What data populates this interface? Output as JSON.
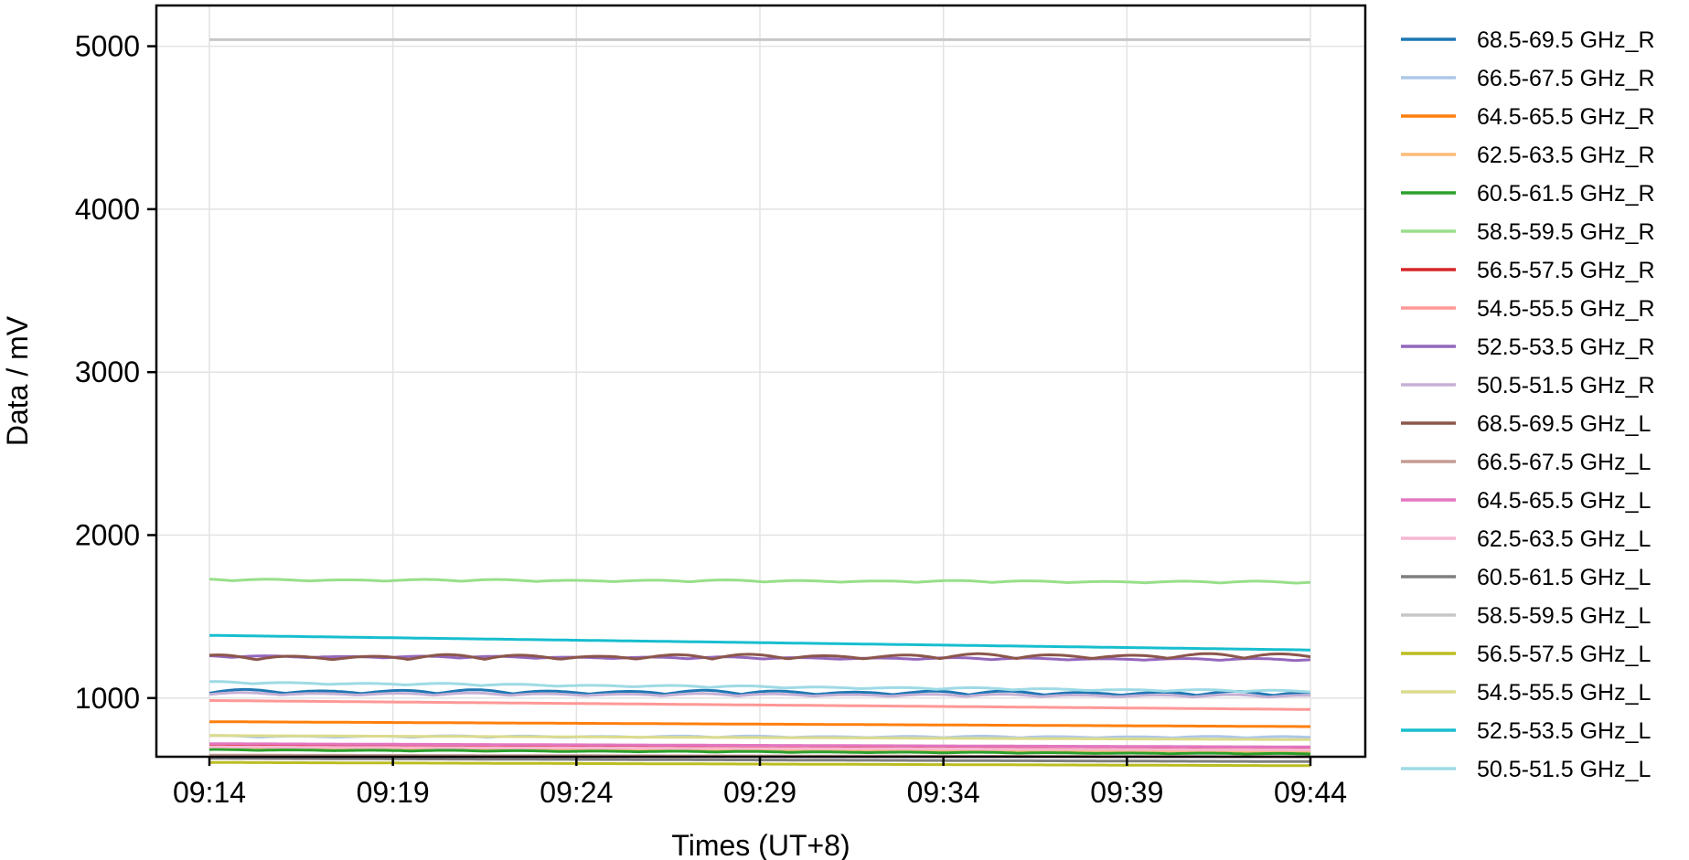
{
  "chart_data": {
    "type": "line",
    "title": "",
    "xlabel": "Times (UT+8)",
    "ylabel": "Data / mV",
    "x_ticks": [
      "09:14",
      "09:19",
      "09:24",
      "09:29",
      "09:34",
      "09:39",
      "09:44"
    ],
    "x_range_minutes": [
      0,
      30
    ],
    "y_ticks": [
      1000,
      2000,
      3000,
      4000,
      5000
    ],
    "ylim": [
      640,
      5250
    ],
    "grid": true,
    "legend_position": "outside-right",
    "series": [
      {
        "name": "68.5-69.5 GHz_R",
        "color": "#1f77b4",
        "base": [
          1030,
          1015
        ],
        "ripple": 25
      },
      {
        "name": "66.5-67.5 GHz_R",
        "color": "#aec7e8",
        "base": [
          760,
          755
        ],
        "ripple": 10
      },
      {
        "name": "64.5-65.5 GHz_R",
        "color": "#ff7f0e",
        "base": [
          855,
          825
        ],
        "ripple": 0
      },
      {
        "name": "62.5-63.5 GHz_R",
        "color": "#ffbb78",
        "base": [
          690,
          672
        ],
        "ripple": 0
      },
      {
        "name": "60.5-61.5 GHz_R",
        "color": "#2ca02c",
        "base": [
          680,
          655
        ],
        "ripple": 5
      },
      {
        "name": "58.5-59.5 GHz_R",
        "color": "#98df8a",
        "base": [
          1720,
          1705
        ],
        "ripple": 12
      },
      {
        "name": "56.5-57.5 GHz_R",
        "color": "#d62728",
        "base": [
          705,
          690
        ],
        "ripple": 0
      },
      {
        "name": "54.5-55.5 GHz_R",
        "color": "#ff9896",
        "base": [
          985,
          930
        ],
        "ripple": 0
      },
      {
        "name": "52.5-53.5 GHz_R",
        "color": "#9467bd",
        "base": [
          1250,
          1230
        ],
        "ripple": 12
      },
      {
        "name": "50.5-51.5 GHz_R",
        "color": "#c5b0d5",
        "base": [
          1020,
          1005
        ],
        "ripple": 15
      },
      {
        "name": "68.5-69.5 GHz_L",
        "color": "#8c564b",
        "base": [
          1235,
          1245
        ],
        "ripple": 30
      },
      {
        "name": "66.5-67.5 GHz_L",
        "color": "#c49c94",
        "base": [
          650,
          640
        ],
        "ripple": 0
      },
      {
        "name": "64.5-65.5 GHz_L",
        "color": "#e377c2",
        "base": [
          720,
          700
        ],
        "ripple": 0
      },
      {
        "name": "62.5-63.5 GHz_L",
        "color": "#f7b6d2",
        "base": [
          700,
          682
        ],
        "ripple": 0
      },
      {
        "name": "60.5-61.5 GHz_L",
        "color": "#7f7f7f",
        "base": [
          630,
          610
        ],
        "ripple": 0
      },
      {
        "name": "58.5-59.5 GHz_L",
        "color": "#c7c7c7",
        "base": [
          5040,
          5040
        ],
        "ripple": 0
      },
      {
        "name": "56.5-57.5 GHz_L",
        "color": "#bcbd22",
        "base": [
          605,
          585
        ],
        "ripple": 0
      },
      {
        "name": "54.5-55.5 GHz_L",
        "color": "#dbdb8d",
        "base": [
          770,
          745
        ],
        "ripple": 0
      },
      {
        "name": "52.5-53.5 GHz_L",
        "color": "#17becf",
        "base": [
          1385,
          1295
        ],
        "ripple": 0
      },
      {
        "name": "50.5-51.5 GHz_L",
        "color": "#9edae5",
        "base": [
          1090,
          1035
        ],
        "ripple": 12
      }
    ]
  }
}
